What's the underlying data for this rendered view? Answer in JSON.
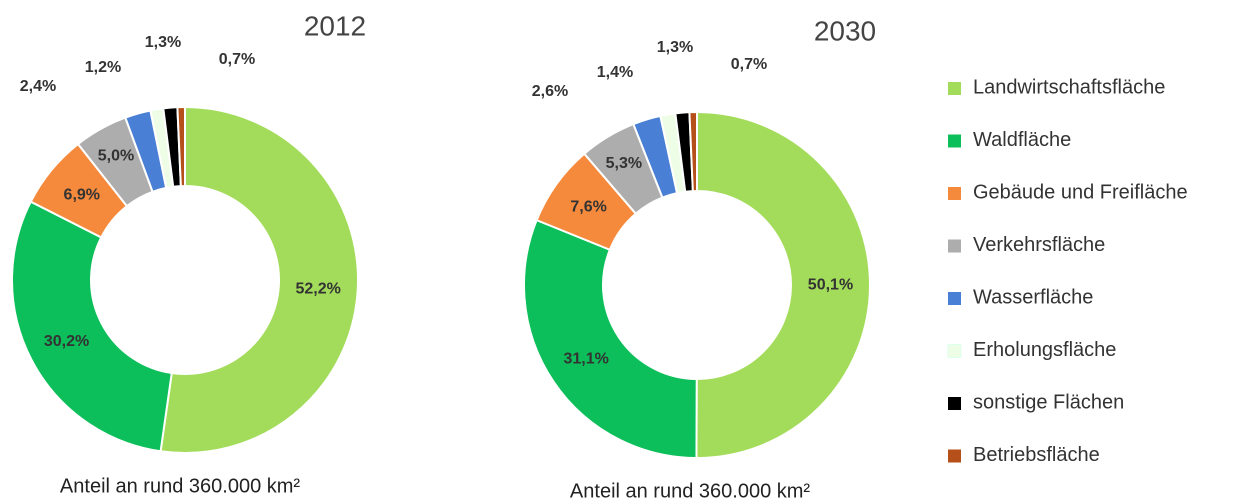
{
  "legend": {
    "labels": [
      "Landwirtschaftsfläche",
      "Waldfläche",
      "Gebäude und Freifläche",
      "Verkehrsfläche",
      "Wasserfläche",
      "Erholungsfläche",
      "sonstige Flächen",
      "Betriebsfläche"
    ],
    "colors": [
      "#a3dc5a",
      "#0cbf5a",
      "#f58a3c",
      "#adadad",
      "#4a7fd6",
      "#eefde6",
      "#000000",
      "#b5501a"
    ]
  },
  "chart_data": [
    {
      "type": "pie",
      "title": "2012",
      "caption": "Anteil an rund 360.000 km²",
      "values": [
        52.2,
        30.2,
        6.9,
        5.0,
        2.4,
        1.2,
        1.3,
        0.7
      ],
      "value_labels": [
        "52,2%",
        "30,2%",
        "6,9%",
        "5,0%",
        "2,4%",
        "1,2%",
        "1,3%",
        "0,7%"
      ]
    },
    {
      "type": "pie",
      "title": "2030",
      "caption": "Anteil an rund 360.000 km²",
      "values": [
        50.1,
        31.1,
        7.6,
        5.3,
        2.6,
        1.4,
        1.3,
        0.7
      ],
      "value_labels": [
        "50,1%",
        "31,1%",
        "7,6%",
        "5,3%",
        "2,6%",
        "1,4%",
        "1,3%",
        "0,7%"
      ]
    }
  ]
}
